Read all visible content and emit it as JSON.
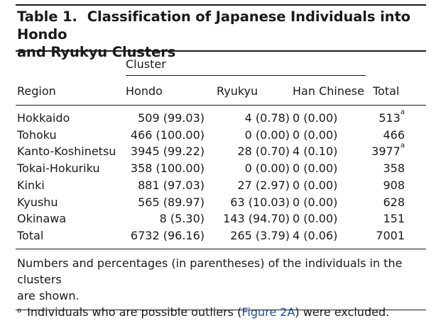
{
  "table": {
    "label": "Table 1.",
    "title_line1": "Classification of Japanese Individuals into Hondo",
    "title_line2": "and Ryukyu Clusters",
    "group_header": "Cluster",
    "columns": {
      "region": "Region",
      "hondo": "Hondo",
      "ryukyu": "Ryukyu",
      "han": "Han Chinese",
      "total": "Total"
    },
    "rows": [
      {
        "region": "Hokkaido",
        "hondo": "509 (99.03)",
        "ryukyu": "4 (0.78)",
        "han": "0 (0.00)",
        "total": "513",
        "total_mark": "a"
      },
      {
        "region": "Tohoku",
        "hondo": "466 (100.00)",
        "ryukyu": "0 (0.00)",
        "han": "0 (0.00)",
        "total": "466",
        "total_mark": ""
      },
      {
        "region": "Kanto-Koshinetsu",
        "hondo": "3945 (99.22)",
        "ryukyu": "28 (0.70)",
        "han": "4 (0.10)",
        "total": "3977",
        "total_mark": "a"
      },
      {
        "region": "Tokai-Hokuriku",
        "hondo": "358 (100.00)",
        "ryukyu": "0 (0.00)",
        "han": "0 (0.00)",
        "total": "358",
        "total_mark": ""
      },
      {
        "region": "Kinki",
        "hondo": "881 (97.03)",
        "ryukyu": "27 (2.97)",
        "han": "0 (0.00)",
        "total": "908",
        "total_mark": ""
      },
      {
        "region": "Kyushu",
        "hondo": "565 (89.97)",
        "ryukyu": "63 (10.03)",
        "han": "0 (0.00)",
        "total": "628",
        "total_mark": ""
      },
      {
        "region": "Okinawa",
        "hondo": "8 (5.30)",
        "ryukyu": "143 (94.70)",
        "han": "0 (0.00)",
        "total": "151",
        "total_mark": ""
      },
      {
        "region": "Total",
        "hondo": "6732 (96.16)",
        "ryukyu": "265 (3.79)",
        "han": "4 (0.06)",
        "total": "7001",
        "total_mark": ""
      }
    ],
    "notes": {
      "line1": "Numbers and percentages (in parentheses) of the individuals in the clusters",
      "line2": "are shown.",
      "footnote_mark": "a",
      "footnote_before": "Individuals who are possible outliers (",
      "footnote_link": "Figure 2A",
      "footnote_after": ") were excluded."
    },
    "link_color": "#1f4fa3"
  }
}
